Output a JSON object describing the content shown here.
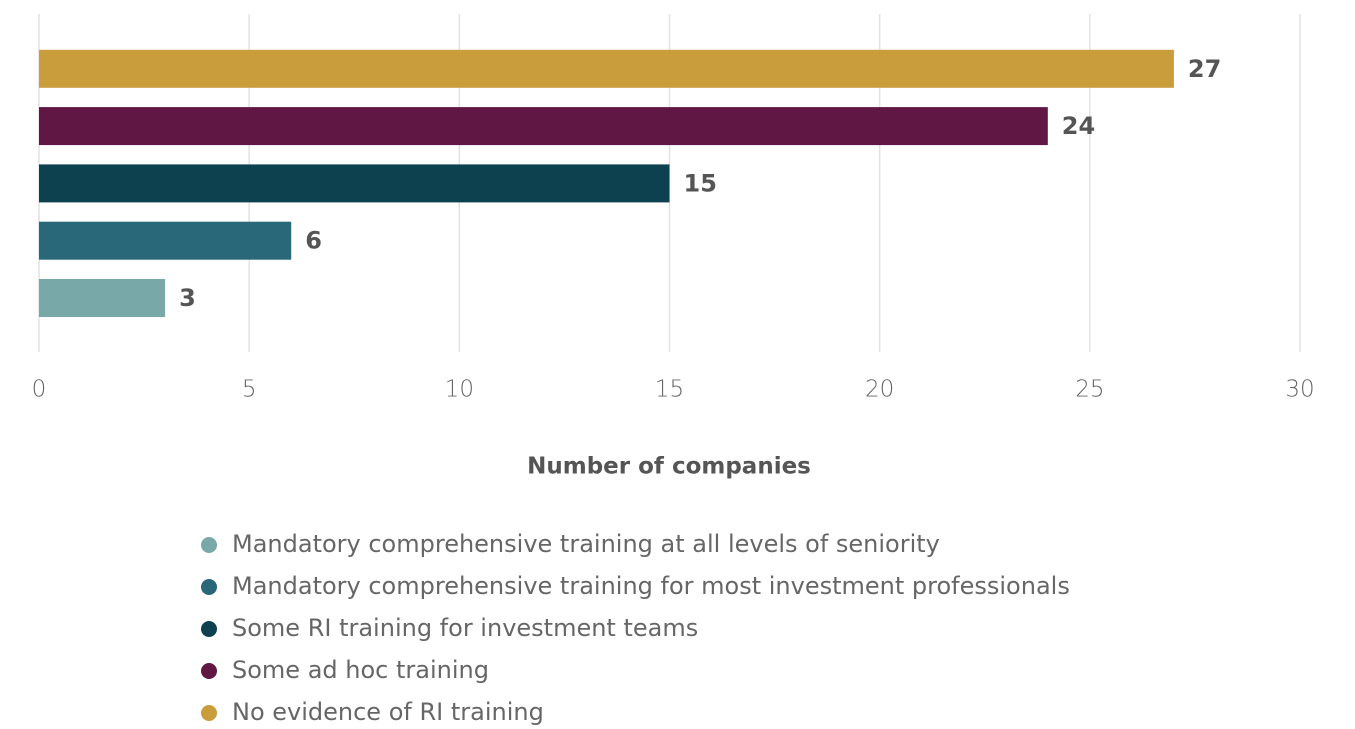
{
  "chart_data": {
    "type": "bar",
    "orientation": "horizontal",
    "x_label": "Number of companies",
    "categories": [
      "Mandatory comprehensive training at all levels of seniority",
      "Mandatory comprehensive training for most investment professionals",
      "Some RI training for investment teams",
      "Some ad hoc training",
      "No evidence of RI training"
    ],
    "values": [
      3,
      6,
      15,
      24,
      27
    ],
    "colors": [
      "#78a8a8",
      "#286878",
      "#0d4150",
      "#611744",
      "#c99c3c"
    ],
    "xlim": [
      0,
      30
    ],
    "xticks": [
      0,
      5,
      10,
      15,
      20,
      25,
      30
    ],
    "grid": true
  }
}
